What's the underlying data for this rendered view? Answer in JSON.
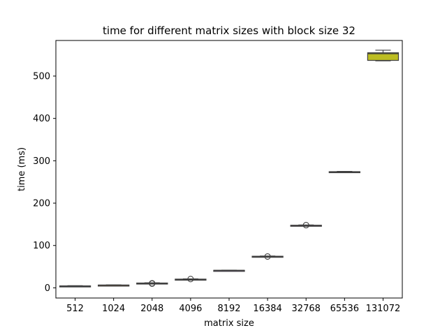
{
  "chart_data": {
    "type": "box",
    "title": "time for different matrix sizes with block size 32",
    "xlabel": "matrix size",
    "ylabel": "time (ms)",
    "categories": [
      "512",
      "1024",
      "2048",
      "4096",
      "8192",
      "16384",
      "32768",
      "65536",
      "131072"
    ],
    "ylim": [
      -24,
      584
    ],
    "yticks": [
      0,
      100,
      200,
      300,
      400,
      500
    ],
    "boxes": [
      {
        "min": 3.5,
        "q1": 4.0,
        "median": 4.3,
        "q3": 4.6,
        "max": 5.0,
        "outliers": []
      },
      {
        "min": 5.6,
        "q1": 6.0,
        "median": 6.3,
        "q3": 6.6,
        "max": 7.0,
        "outliers": []
      },
      {
        "min": 10.2,
        "q1": 10.6,
        "median": 11.0,
        "q3": 11.4,
        "max": 11.8,
        "outliers": [
          10.0,
          10.8
        ]
      },
      {
        "min": 18.8,
        "q1": 19.4,
        "median": 20.0,
        "q3": 20.6,
        "max": 21.2,
        "outliers": [
          20.8
        ]
      },
      {
        "min": 40.0,
        "q1": 40.5,
        "median": 41.0,
        "q3": 41.4,
        "max": 41.8,
        "outliers": []
      },
      {
        "min": 73.0,
        "q1": 73.6,
        "median": 74.0,
        "q3": 74.6,
        "max": 75.2,
        "outliers": [
          74.0
        ]
      },
      {
        "min": 146.0,
        "q1": 146.6,
        "median": 147.2,
        "q3": 147.8,
        "max": 148.4,
        "outliers": [
          148.0
        ]
      },
      {
        "min": 272.8,
        "q1": 273.4,
        "median": 273.8,
        "q3": 274.3,
        "max": 274.8,
        "outliers": []
      },
      {
        "min": 536.0,
        "q1": 537.0,
        "median": 553.0,
        "q3": 555.0,
        "max": 561.0,
        "outliers": []
      }
    ],
    "box_colors": [
      "#1f77b4",
      "#ff7f0e",
      "#2ca02c",
      "#d62728",
      "#9467bd",
      "#8c564b",
      "#e377c2",
      "#7f7f7f",
      "#bcbd22"
    ],
    "line_color": "#3f3f3f",
    "grid": false,
    "legend": "none"
  }
}
